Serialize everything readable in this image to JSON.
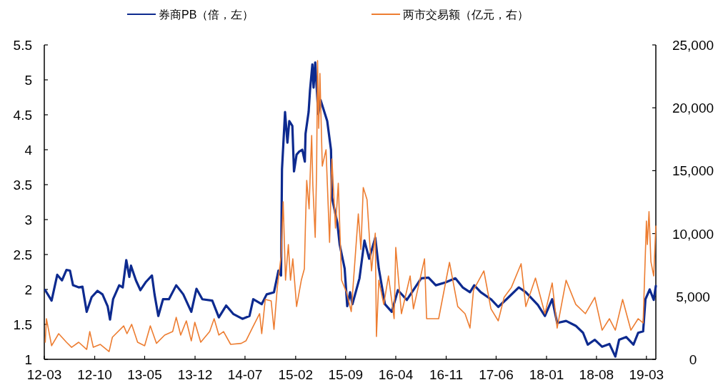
{
  "chart_data": {
    "type": "line",
    "legend": "top",
    "line_style": "solid",
    "xlim": [
      "2012-03-01",
      "2019-04-10"
    ],
    "xticks": [
      {
        "value": "2012-03-01",
        "label": "12-03"
      },
      {
        "value": "2012-10-01",
        "label": "12-10"
      },
      {
        "value": "2013-05-01",
        "label": "13-05"
      },
      {
        "value": "2013-12-01",
        "label": "13-12"
      },
      {
        "value": "2014-07-01",
        "label": "14-07"
      },
      {
        "value": "2015-02-01",
        "label": "15-02"
      },
      {
        "value": "2015-09-01",
        "label": "15-09"
      },
      {
        "value": "2016-04-01",
        "label": "16-04"
      },
      {
        "value": "2016-11-01",
        "label": "16-11"
      },
      {
        "value": "2017-06-01",
        "label": "17-06"
      },
      {
        "value": "2018-01-01",
        "label": "18-01"
      },
      {
        "value": "2018-08-01",
        "label": "18-08"
      },
      {
        "value": "2019-03-01",
        "label": "19-03"
      }
    ],
    "ylim": [
      1,
      5.5
    ],
    "yticks": [
      1,
      1.5,
      2,
      2.5,
      3,
      3.5,
      4,
      4.5,
      5,
      5.5
    ],
    "y2lim": [
      0,
      25000
    ],
    "y2ticks": [
      0,
      {
        "value": 5000,
        "label": "5,000"
      },
      {
        "value": 10000,
        "label": "10,000"
      },
      {
        "value": 15000,
        "label": "15,000"
      },
      {
        "value": 20000,
        "label": "20,000"
      },
      {
        "value": 25000,
        "label": "25,000"
      }
    ],
    "series": [
      {
        "name": "券商PB（倍，左）",
        "color": "#0d2a8f",
        "axis": "y",
        "x": [
          "2012-03-05",
          "2012-04-01",
          "2012-04-25",
          "2012-05-15",
          "2012-06-03",
          "2012-06-18",
          "2012-07-01",
          "2012-07-25",
          "2012-08-10",
          "2012-08-28",
          "2012-09-18",
          "2012-10-13",
          "2012-11-03",
          "2012-11-25",
          "2012-12-05",
          "2012-12-18",
          "2013-01-13",
          "2013-01-28",
          "2013-02-12",
          "2013-02-25",
          "2013-03-04",
          "2013-03-25",
          "2013-04-13",
          "2013-05-07",
          "2013-06-01",
          "2013-06-12",
          "2013-06-28",
          "2013-07-18",
          "2013-08-12",
          "2013-09-12",
          "2013-10-12",
          "2013-11-15",
          "2013-12-07",
          "2014-01-01",
          "2014-02-12",
          "2014-03-12",
          "2014-04-12",
          "2014-05-12",
          "2014-06-20",
          "2014-07-20",
          "2014-08-05",
          "2014-09-10",
          "2014-10-01",
          "2014-11-01",
          "2014-11-20",
          "2014-12-01",
          "2014-12-05",
          "2014-12-18",
          "2014-12-28",
          "2015-01-05",
          "2015-01-18",
          "2015-01-25",
          "2015-02-05",
          "2015-02-15",
          "2015-03-01",
          "2015-03-12",
          "2015-03-15",
          "2015-03-28",
          "2015-04-03",
          "2015-04-13",
          "2015-04-18",
          "2015-04-25",
          "2015-05-08",
          "2015-05-18",
          "2015-06-15",
          "2015-07-01",
          "2015-07-05",
          "2015-07-28",
          "2015-08-07",
          "2015-08-28",
          "2015-09-08",
          "2015-09-20",
          "2015-09-30",
          "2015-10-30",
          "2015-11-20",
          "2015-12-10",
          "2016-01-05",
          "2016-01-20",
          "2016-02-15",
          "2016-03-15",
          "2016-04-10",
          "2016-05-18",
          "2016-07-18",
          "2016-08-18",
          "2016-09-18",
          "2016-10-28",
          "2016-12-10",
          "2017-01-10",
          "2017-02-10",
          "2017-02-28",
          "2017-03-28",
          "2017-05-10",
          "2017-06-10",
          "2017-07-15",
          "2017-09-05",
          "2017-10-05",
          "2017-11-25",
          "2017-12-25",
          "2018-01-25",
          "2018-02-15",
          "2018-03-25",
          "2018-05-05",
          "2018-06-05",
          "2018-06-25",
          "2018-07-25",
          "2018-08-25",
          "2018-09-25",
          "2018-10-20",
          "2018-11-05",
          "2018-12-05",
          "2019-01-05",
          "2019-01-25",
          "2019-02-15",
          "2019-02-25",
          "2019-03-15",
          "2019-04-01",
          "2019-04-10"
        ],
        "values": [
          1.99,
          1.84,
          2.21,
          2.13,
          2.28,
          2.27,
          2.06,
          2.03,
          2.04,
          1.68,
          1.89,
          1.98,
          1.93,
          1.76,
          1.57,
          1.86,
          2.06,
          2.03,
          2.42,
          2.18,
          2.34,
          2.13,
          1.99,
          2.11,
          2.2,
          1.93,
          1.62,
          1.86,
          1.86,
          2.06,
          1.93,
          1.68,
          2.01,
          1.86,
          1.84,
          1.6,
          1.77,
          1.65,
          1.58,
          1.62,
          1.86,
          1.79,
          1.93,
          1.96,
          2.27,
          2.2,
          3.72,
          4.54,
          4.1,
          4.41,
          4.34,
          3.69,
          3.93,
          3.97,
          4.0,
          3.83,
          4.23,
          4.54,
          4.85,
          5.22,
          4.89,
          5.25,
          4.51,
          4.71,
          4.41,
          4.0,
          3.32,
          2.95,
          2.64,
          2.3,
          1.76,
          1.96,
          1.79,
          2.16,
          2.7,
          2.44,
          2.74,
          2.3,
          1.79,
          1.68,
          1.99,
          1.85,
          2.16,
          2.17,
          2.06,
          2.1,
          2.16,
          2.03,
          1.96,
          2.06,
          1.96,
          1.86,
          1.75,
          1.86,
          2.03,
          1.96,
          1.78,
          1.62,
          1.86,
          1.52,
          1.55,
          1.48,
          1.38,
          1.21,
          1.28,
          1.18,
          1.22,
          1.04,
          1.28,
          1.32,
          1.21,
          1.38,
          1.4,
          1.86,
          2.0,
          1.85,
          2.05
        ]
      },
      {
        "name": "两市交易额（亿元，右）",
        "color": "#ed7d31",
        "axis": "y2",
        "x": [
          "2012-03-05",
          "2012-03-10",
          "2012-04-01",
          "2012-05-01",
          "2012-06-03",
          "2012-06-25",
          "2012-07-25",
          "2012-08-28",
          "2012-09-10",
          "2012-09-25",
          "2012-10-25",
          "2012-12-01",
          "2012-12-15",
          "2013-02-01",
          "2013-02-15",
          "2013-03-07",
          "2013-04-01",
          "2013-05-01",
          "2013-05-25",
          "2013-06-20",
          "2013-07-25",
          "2013-08-28",
          "2013-09-12",
          "2013-10-01",
          "2013-10-25",
          "2013-11-15",
          "2013-11-30",
          "2013-12-25",
          "2014-02-01",
          "2014-02-20",
          "2014-03-12",
          "2014-04-01",
          "2014-05-01",
          "2014-06-15",
          "2014-07-05",
          "2014-08-01",
          "2014-09-01",
          "2014-09-10",
          "2014-09-25",
          "2014-10-20",
          "2014-11-01",
          "2014-11-15",
          "2014-12-01",
          "2014-12-10",
          "2014-12-20",
          "2015-01-01",
          "2015-01-10",
          "2015-01-20",
          "2015-02-05",
          "2015-02-25",
          "2015-03-10",
          "2015-03-15",
          "2015-03-20",
          "2015-03-30",
          "2015-04-05",
          "2015-04-10",
          "2015-04-15",
          "2015-04-25",
          "2015-05-01",
          "2015-05-05",
          "2015-05-10",
          "2015-05-15",
          "2015-05-25",
          "2015-06-10",
          "2015-06-25",
          "2015-07-05",
          "2015-07-20",
          "2015-08-01",
          "2015-08-15",
          "2015-09-05",
          "2015-09-25",
          "2015-10-25",
          "2015-11-05",
          "2015-11-15",
          "2015-12-01",
          "2015-12-20",
          "2016-01-05",
          "2016-01-10",
          "2016-01-20",
          "2016-02-10",
          "2016-03-01",
          "2016-03-25",
          "2016-04-01",
          "2016-04-25",
          "2016-06-01",
          "2016-06-15",
          "2016-08-01",
          "2016-08-10",
          "2016-09-30",
          "2016-11-15",
          "2016-12-20",
          "2017-01-20",
          "2017-02-10",
          "2017-02-25",
          "2017-04-10",
          "2017-05-10",
          "2017-06-10",
          "2017-07-05",
          "2017-08-05",
          "2017-09-15",
          "2017-10-05",
          "2017-11-15",
          "2017-12-25",
          "2018-01-25",
          "2018-02-15",
          "2018-03-25",
          "2018-05-05",
          "2018-06-15",
          "2018-07-25",
          "2018-08-25",
          "2018-09-25",
          "2018-10-20",
          "2018-11-20",
          "2018-12-25",
          "2019-01-25",
          "2019-02-15",
          "2019-03-01",
          "2019-03-05",
          "2019-03-12",
          "2019-03-20",
          "2019-04-01",
          "2019-04-10"
        ],
        "values": [
          1360,
          3230,
          1080,
          2040,
          1360,
          960,
          1360,
          790,
          2210,
          960,
          1190,
          620,
          1760,
          2660,
          2040,
          2780,
          1360,
          1080,
          2660,
          1270,
          1930,
          2210,
          3340,
          1930,
          3060,
          1470,
          2950,
          1360,
          2210,
          3230,
          1930,
          2210,
          1190,
          1270,
          1470,
          2490,
          3630,
          2040,
          4760,
          4650,
          2380,
          5700,
          8160,
          12530,
          6290,
          9130,
          6290,
          7990,
          4200,
          6290,
          7200,
          11000,
          14230,
          11960,
          15360,
          17800,
          13830,
          9690,
          15140,
          23750,
          18370,
          22730,
          15360,
          16670,
          9300,
          15930,
          10430,
          14000,
          6290,
          5330,
          3800,
          11560,
          8730,
          13660,
          12700,
          7030,
          10030,
          1810,
          6290,
          4370,
          6630,
          3230,
          8900,
          3630,
          6630,
          4020,
          7990,
          3230,
          3230,
          7710,
          4200,
          3630,
          2490,
          5500,
          7030,
          4020,
          3060,
          4930,
          5730,
          7600,
          4200,
          6460,
          3630,
          6070,
          2490,
          6290,
          4370,
          3630,
          4930,
          2320,
          3230,
          2320,
          4760,
          2320,
          3230,
          2890,
          11000,
          9130,
          11740,
          7770,
          6630,
          10600
        ]
      }
    ]
  }
}
